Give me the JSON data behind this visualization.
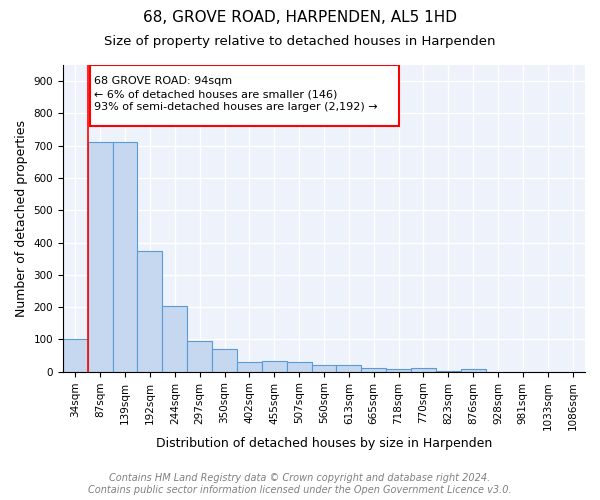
{
  "title": "68, GROVE ROAD, HARPENDEN, AL5 1HD",
  "subtitle": "Size of property relative to detached houses in Harpenden",
  "xlabel": "Distribution of detached houses by size in Harpenden",
  "ylabel": "Number of detached properties",
  "categories": [
    "34sqm",
    "87sqm",
    "139sqm",
    "192sqm",
    "244sqm",
    "297sqm",
    "350sqm",
    "402sqm",
    "455sqm",
    "507sqm",
    "560sqm",
    "613sqm",
    "665sqm",
    "718sqm",
    "770sqm",
    "823sqm",
    "876sqm",
    "928sqm",
    "981sqm",
    "1033sqm",
    "1086sqm"
  ],
  "values": [
    100,
    710,
    710,
    375,
    205,
    95,
    70,
    30,
    33,
    30,
    22,
    22,
    10,
    8,
    10,
    2,
    7,
    0,
    0,
    0,
    0
  ],
  "bar_color": "#c5d8f0",
  "bar_edge_color": "#5b9bd5",
  "vline_x": 1,
  "vline_color": "red",
  "annotation_text": "68 GROVE ROAD: 94sqm\n← 6% of detached houses are smaller (146)\n93% of semi-detached houses are larger (2,192) →",
  "annotation_box_color": "red",
  "annotation_text_color": "black",
  "ylim": [
    0,
    950
  ],
  "yticks": [
    0,
    100,
    200,
    300,
    400,
    500,
    600,
    700,
    800,
    900
  ],
  "footer_line1": "Contains HM Land Registry data © Crown copyright and database right 2024.",
  "footer_line2": "Contains public sector information licensed under the Open Government Licence v3.0.",
  "background_color": "#eef3fb",
  "grid_color": "white",
  "title_fontsize": 11,
  "subtitle_fontsize": 9.5,
  "axis_label_fontsize": 9,
  "tick_fontsize": 7.5,
  "annotation_fontsize": 8,
  "footer_fontsize": 7
}
